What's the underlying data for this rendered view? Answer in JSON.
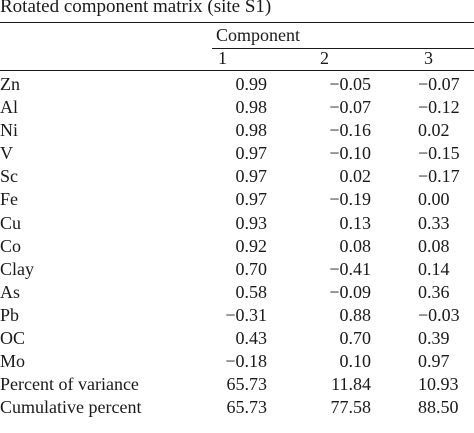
{
  "caption": "Rotated component matrix (site S1)",
  "header": {
    "group_label": "Component",
    "columns": [
      "1",
      "2",
      "3"
    ]
  },
  "rows": [
    {
      "label": "Zn",
      "values": [
        "0.99",
        "−0.05",
        "−0.07"
      ]
    },
    {
      "label": "Al",
      "values": [
        "0.98",
        "−0.07",
        "−0.12"
      ]
    },
    {
      "label": "Ni",
      "values": [
        "0.98",
        "−0.16",
        "0.02"
      ]
    },
    {
      "label": "V",
      "values": [
        "0.97",
        "−0.10",
        "−0.15"
      ]
    },
    {
      "label": "Sc",
      "values": [
        "0.97",
        "0.02",
        "−0.17"
      ]
    },
    {
      "label": "Fe",
      "values": [
        "0.97",
        "−0.19",
        "0.00"
      ]
    },
    {
      "label": "Cu",
      "values": [
        "0.93",
        "0.13",
        "0.33"
      ]
    },
    {
      "label": "Co",
      "values": [
        "0.92",
        "0.08",
        "0.08"
      ]
    },
    {
      "label": "Clay",
      "values": [
        "0.70",
        "−0.41",
        "0.14"
      ]
    },
    {
      "label": "As",
      "values": [
        "0.58",
        "−0.09",
        "0.36"
      ]
    },
    {
      "label": "Pb",
      "values": [
        "−0.31",
        "0.88",
        "−0.03"
      ]
    },
    {
      "label": "OC",
      "values": [
        "0.43",
        "0.70",
        "0.39"
      ]
    },
    {
      "label": "Mo",
      "values": [
        "−0.18",
        "0.10",
        "0.97"
      ]
    },
    {
      "label": "Percent of variance",
      "values": [
        "65.73",
        "11.84",
        "10.93"
      ]
    },
    {
      "label": "Cumulative percent",
      "values": [
        "65.73",
        "77.58",
        "88.50"
      ]
    }
  ]
}
